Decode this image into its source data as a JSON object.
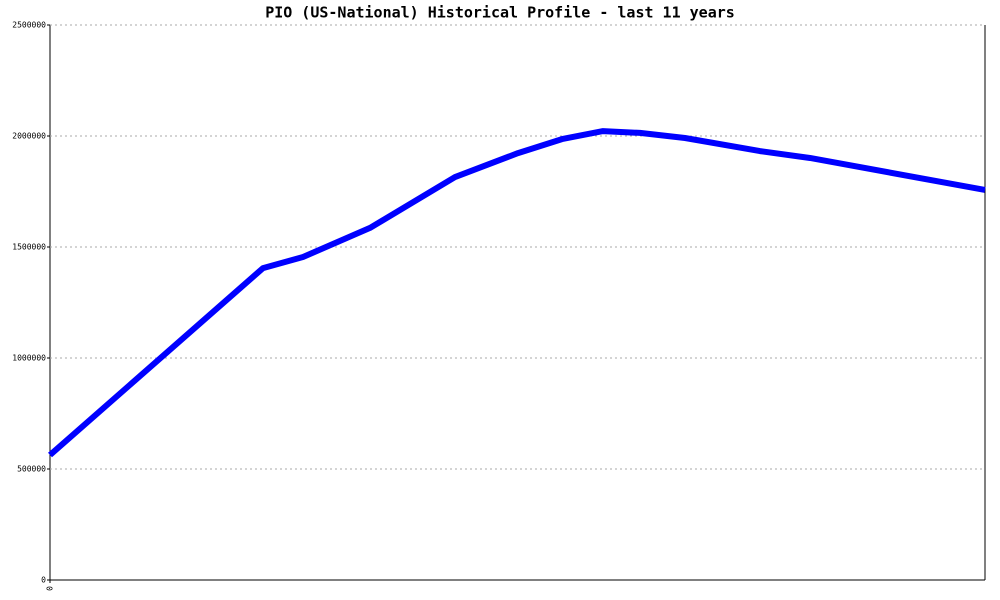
{
  "chart_data": {
    "type": "line",
    "title": "PIO (US-National) Historical Profile - last 11 years",
    "x": [
      0,
      213,
      253,
      320,
      405,
      468,
      512,
      553,
      590,
      635,
      710,
      760,
      935
    ],
    "series": [
      {
        "color": "#0000ff",
        "values": [
          563000,
          1405000,
          1455000,
          1586000,
          1815000,
          1923000,
          1986000,
          2022000,
          2014000,
          1991000,
          1932000,
          1901000,
          1757000
        ]
      }
    ],
    "xlim": [
      0,
      935
    ],
    "xticks": [
      0
    ],
    "ylim": [
      0,
      2500000
    ],
    "yticks": [
      0,
      500000,
      1000000,
      1500000,
      2000000,
      2500000
    ],
    "grid": true
  }
}
